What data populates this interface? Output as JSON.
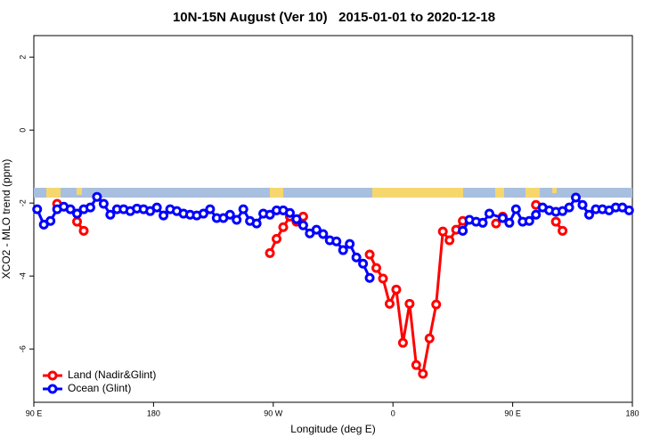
{
  "chart_data": {
    "type": "line",
    "title": "10N-15N August (Ver 10)   2015-01-01 to 2020-12-18",
    "x_label": "Longitude (deg E)",
    "y_label": "XCO2 - MLO trend (ppm)",
    "xlim": [
      90,
      540
    ],
    "ylim": [
      -7.46,
      2.59
    ],
    "xticks": [
      {
        "value": 90,
        "label": "90 E"
      },
      180,
      {
        "value": 270,
        "label": "90 W"
      },
      {
        "value": 360,
        "label": "0"
      },
      {
        "value": 450,
        "label": "90 E"
      },
      {
        "value": 540,
        "label": "180"
      }
    ],
    "yticks": [
      2,
      0,
      -2,
      -4,
      -6
    ],
    "legend": "bottom-left",
    "series": [
      {
        "name": "Land (Nadir&Glint)",
        "color": "#ff0000",
        "x": [
          107.5,
          122.5,
          127.5,
          267.5,
          272.5,
          277.5,
          282.5,
          287.5,
          292.5,
          342.5,
          347.5,
          352.5,
          357.5,
          362.5,
          367.5,
          372.5,
          377.5,
          382.5,
          387.5,
          392.5,
          397.5,
          402.5,
          407.5,
          412.5,
          437.5,
          442.5,
          467.5,
          482.5,
          487.5
        ],
        "values": [
          -2.02,
          -2.51,
          -2.76,
          -3.37,
          -2.98,
          -2.66,
          -2.37,
          -2.51,
          -2.37,
          -3.41,
          -3.78,
          -4.07,
          -4.76,
          -4.37,
          -5.83,
          -4.76,
          -6.44,
          -6.68,
          -5.71,
          -4.78,
          -2.78,
          -3.02,
          -2.73,
          -2.49,
          -2.56,
          -2.37,
          -2.05,
          -2.51,
          -2.76
        ]
      },
      {
        "name": "Ocean (Glint)",
        "color": "#0000ff",
        "x": [
          92.5,
          97.5,
          102.5,
          107.5,
          112.5,
          117.5,
          122.5,
          127.5,
          132.5,
          137.5,
          142.5,
          147.5,
          152.5,
          157.5,
          162.5,
          167.5,
          172.5,
          177.5,
          182.5,
          187.5,
          192.5,
          197.5,
          202.5,
          207.5,
          212.5,
          217.5,
          222.5,
          227.5,
          232.5,
          237.5,
          242.5,
          247.5,
          252.5,
          257.5,
          262.5,
          267.5,
          272.5,
          277.5,
          282.5,
          287.5,
          292.5,
          297.5,
          302.5,
          307.5,
          312.5,
          317.5,
          322.5,
          327.5,
          332.5,
          337.5,
          342.5,
          412.5,
          417.5,
          422.5,
          427.5,
          432.5,
          442.5,
          447.5,
          452.5,
          457.5,
          462.5,
          467.5,
          472.5,
          477.5,
          482.5,
          487.5,
          492.5,
          497.5,
          502.5,
          507.5,
          512.5,
          517.5,
          522.5,
          527.5,
          532.5,
          537.5
        ],
        "values": [
          -2.17,
          -2.59,
          -2.49,
          -2.17,
          -2.1,
          -2.17,
          -2.29,
          -2.17,
          -2.12,
          -1.83,
          -2.02,
          -2.32,
          -2.17,
          -2.17,
          -2.22,
          -2.15,
          -2.17,
          -2.22,
          -2.12,
          -2.34,
          -2.17,
          -2.22,
          -2.29,
          -2.32,
          -2.34,
          -2.29,
          -2.17,
          -2.41,
          -2.41,
          -2.32,
          -2.46,
          -2.17,
          -2.49,
          -2.56,
          -2.29,
          -2.32,
          -2.2,
          -2.2,
          -2.27,
          -2.44,
          -2.61,
          -2.83,
          -2.73,
          -2.85,
          -3.02,
          -3.05,
          -3.29,
          -3.12,
          -3.49,
          -3.66,
          -4.05,
          -2.76,
          -2.46,
          -2.51,
          -2.54,
          -2.29,
          -2.41,
          -2.54,
          -2.17,
          -2.51,
          -2.49,
          -2.32,
          -2.12,
          -2.2,
          -2.24,
          -2.22,
          -2.12,
          -1.85,
          -2.05,
          -2.32,
          -2.17,
          -2.17,
          -2.2,
          -2.12,
          -2.12,
          -2.2
        ]
      }
    ]
  }
}
